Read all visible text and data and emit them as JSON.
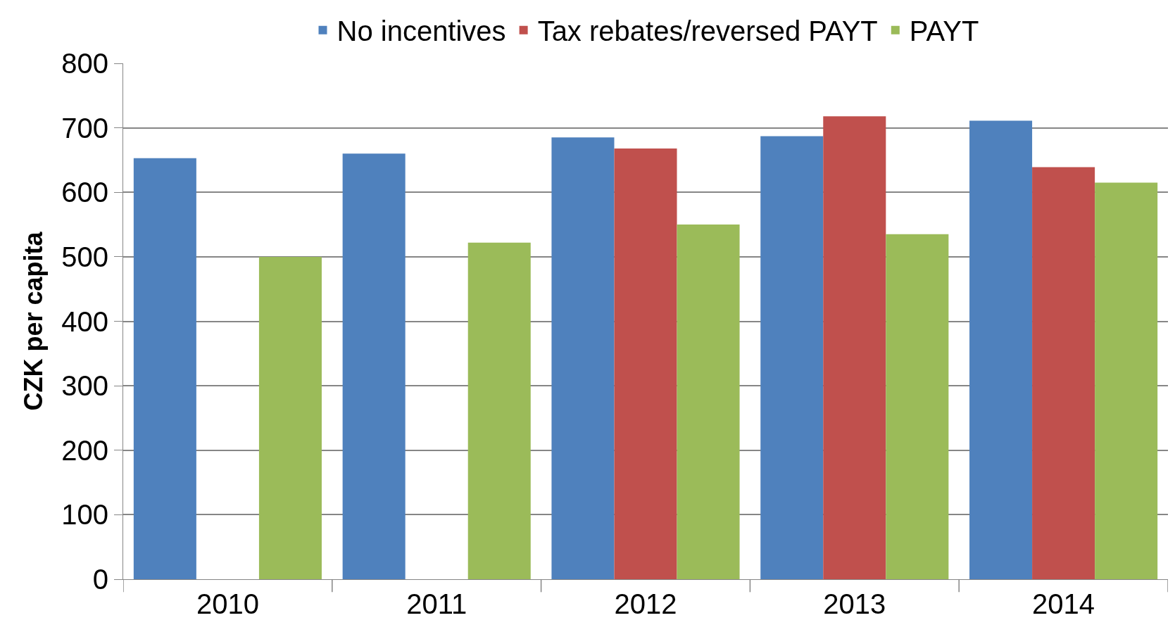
{
  "chart_data": {
    "type": "bar",
    "ylabel": "CZK per capita",
    "categories": [
      "2010",
      "2011",
      "2012",
      "2013",
      "2014"
    ],
    "series": [
      {
        "name": "No incentives",
        "color": "#4f81bd",
        "values": [
          653,
          660,
          685,
          687,
          711
        ]
      },
      {
        "name": "Tax rebates/reversed PAYT",
        "color": "#c0504d",
        "values": [
          null,
          null,
          668,
          718,
          639
        ]
      },
      {
        "name": "PAYT",
        "color": "#9bbb59",
        "values": [
          500,
          522,
          550,
          535,
          615
        ]
      }
    ],
    "ylim": [
      0,
      800
    ],
    "yticks": [
      0,
      100,
      200,
      300,
      400,
      500,
      600,
      700,
      800
    ],
    "grid": "y",
    "legend": "top"
  }
}
